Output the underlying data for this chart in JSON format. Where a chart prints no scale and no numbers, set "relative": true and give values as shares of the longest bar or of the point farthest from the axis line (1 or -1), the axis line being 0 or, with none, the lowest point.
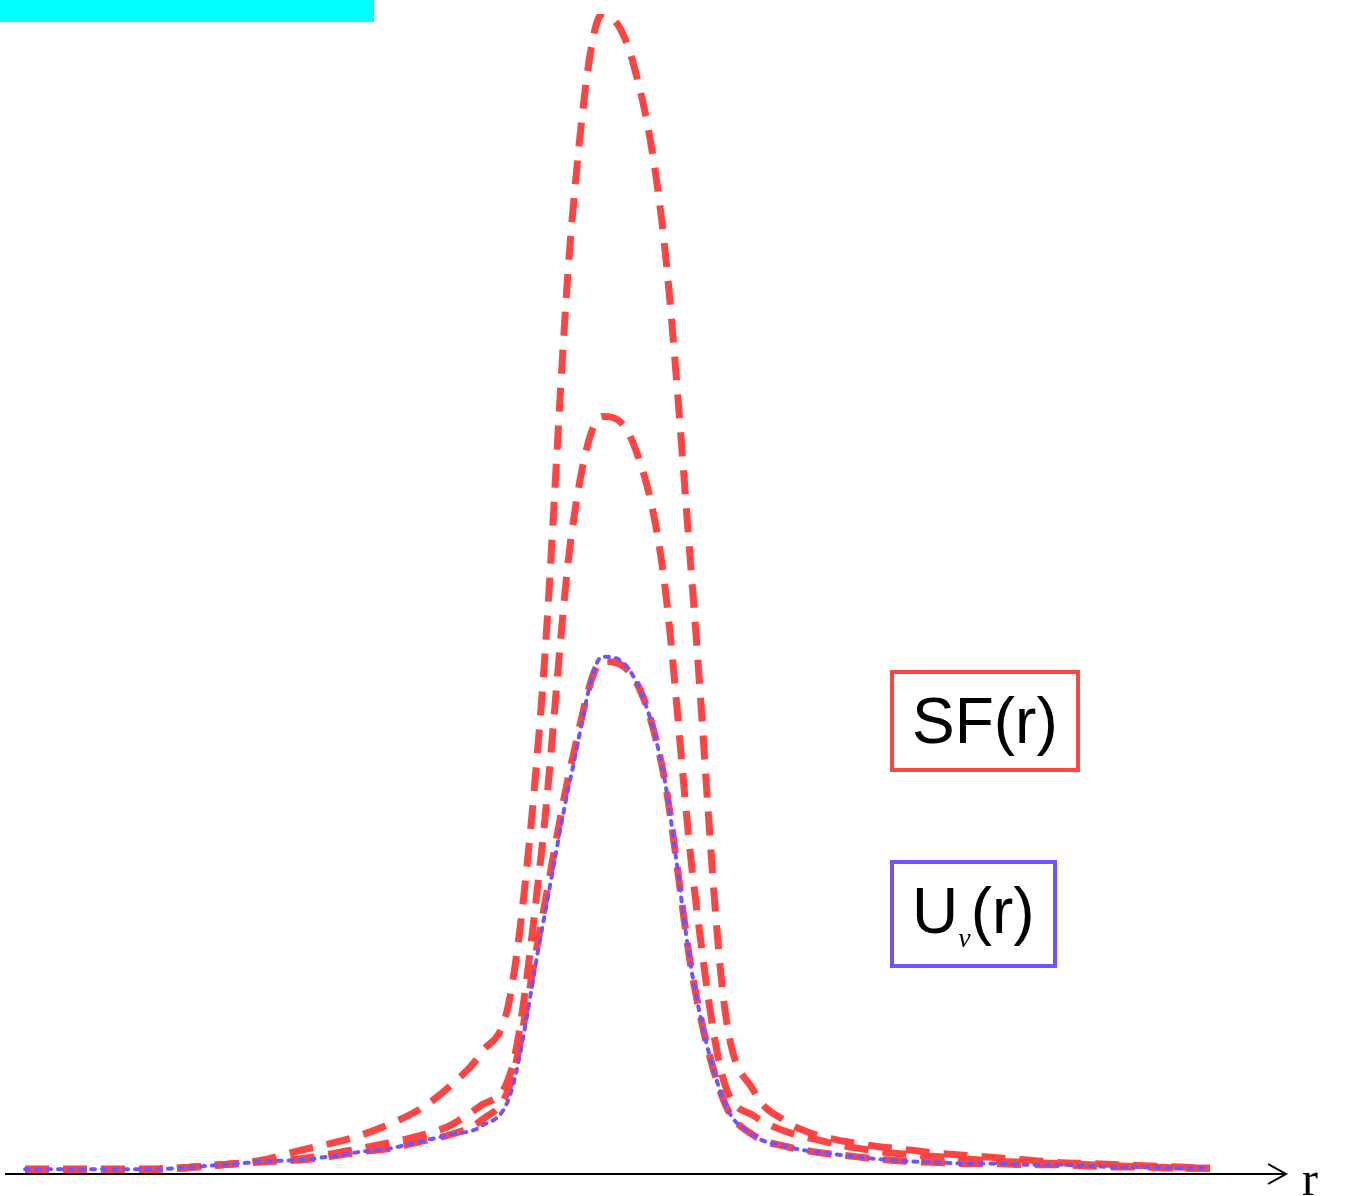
{
  "chart_data": {
    "type": "line",
    "relative": true,
    "xlabel": "r",
    "legend": "right",
    "marker": "none",
    "categories": [
      null,
      null,
      null,
      null,
      null,
      null,
      null,
      null,
      null,
      null,
      null,
      null,
      null,
      null,
      null,
      null,
      null,
      null,
      null,
      null,
      null,
      null,
      null,
      null,
      null,
      null,
      null,
      null,
      null,
      null,
      null,
      null,
      null,
      null,
      null,
      null,
      null,
      null,
      null,
      null
    ],
    "series": [
      {
        "name": "SF(r)",
        "color": "#ff4444",
        "line_style": "dashed",
        "values": [
          0.004,
          0.004,
          0.004,
          0.004,
          0.004,
          0.005,
          0.007,
          0.009,
          0.013,
          0.02,
          0.026,
          0.033,
          0.043,
          0.056,
          0.076,
          0.104,
          0.158,
          0.407,
          0.821,
          1,
          0.959,
          0.812,
          0.494,
          0.149,
          0.071,
          0.046,
          0.034,
          0.028,
          0.024,
          0.021,
          0.018,
          0.016,
          0.014,
          0.012,
          0.01,
          0.009,
          0.008,
          0.007,
          0.006,
          0.005
        ]
      },
      {
        "color": "#ff4444",
        "line_style": "dashed",
        "values": [
          0.004,
          0.004,
          0.004,
          0.004,
          0.004,
          0.005,
          0.007,
          0.009,
          0.011,
          0.013,
          0.017,
          0.022,
          0.027,
          0.033,
          0.042,
          0.059,
          0.089,
          0.278,
          0.554,
          0.653,
          0.631,
          0.519,
          0.252,
          0.08,
          0.05,
          0.037,
          0.03,
          0.024,
          0.02,
          0.017,
          0.015,
          0.013,
          0.011,
          0.01,
          0.009,
          0.008,
          0.007,
          0.006,
          0.005,
          0.005
        ]
      },
      {
        "color": "#ff4444",
        "line_style": "dashed",
        "values": [
          0.004,
          0.004,
          0.004,
          0.004,
          0.004,
          0.005,
          0.007,
          0.009,
          0.011,
          0.012,
          0.015,
          0.019,
          0.022,
          0.028,
          0.034,
          0.046,
          0.08,
          0.218,
          0.356,
          0.442,
          0.429,
          0.347,
          0.166,
          0.063,
          0.033,
          0.024,
          0.019,
          0.016,
          0.013,
          0.011,
          0.01,
          0.009,
          0.009,
          0.008,
          0.008,
          0.007,
          0.006,
          0.006,
          0.005,
          0.005
        ]
      },
      {
        "name": "U$_{ν}$(r)",
        "color": "#7055ff",
        "line_style": "dotted",
        "values": [
          0.004,
          0.004,
          0.004,
          0.004,
          0.004,
          0.005,
          0.007,
          0.009,
          0.011,
          0.012,
          0.015,
          0.019,
          0.022,
          0.028,
          0.034,
          0.041,
          0.071,
          0.209,
          0.347,
          0.446,
          0.43,
          0.347,
          0.166,
          0.063,
          0.033,
          0.024,
          0.019,
          0.016,
          0.013,
          0.011,
          0.01,
          0.009,
          0.009,
          0.008,
          0.008,
          0.007,
          0.006,
          0.006,
          0.005,
          0.005
        ]
      }
    ]
  }
}
